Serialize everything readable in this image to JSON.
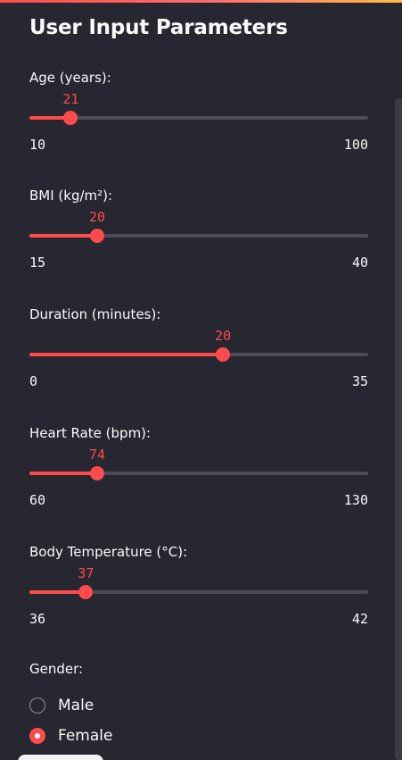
{
  "sidebar": {
    "title": "User Input Parameters",
    "accent_color": "#ff4b4b",
    "sliders": [
      {
        "label": "Age (years):",
        "value": "21",
        "min": "10",
        "max": "100",
        "num_value": 21,
        "num_min": 10,
        "num_max": 100
      },
      {
        "label": "BMI (kg/m²):",
        "value": "20",
        "min": "15",
        "max": "40",
        "num_value": 20,
        "num_min": 15,
        "num_max": 40
      },
      {
        "label": "Duration (minutes):",
        "value": "20",
        "min": "0",
        "max": "35",
        "num_value": 20,
        "num_min": 0,
        "num_max": 35
      },
      {
        "label": "Heart Rate (bpm):",
        "value": "74",
        "min": "60",
        "max": "130",
        "num_value": 74,
        "num_min": 60,
        "num_max": 130
      },
      {
        "label": "Body Temperature (°C):",
        "value": "37",
        "min": "36",
        "max": "42",
        "num_value": 37,
        "num_min": 36,
        "num_max": 42
      }
    ],
    "gender": {
      "label": "Gender:",
      "options": [
        {
          "label": "Male",
          "selected": false
        },
        {
          "label": "Female",
          "selected": true
        }
      ]
    }
  }
}
